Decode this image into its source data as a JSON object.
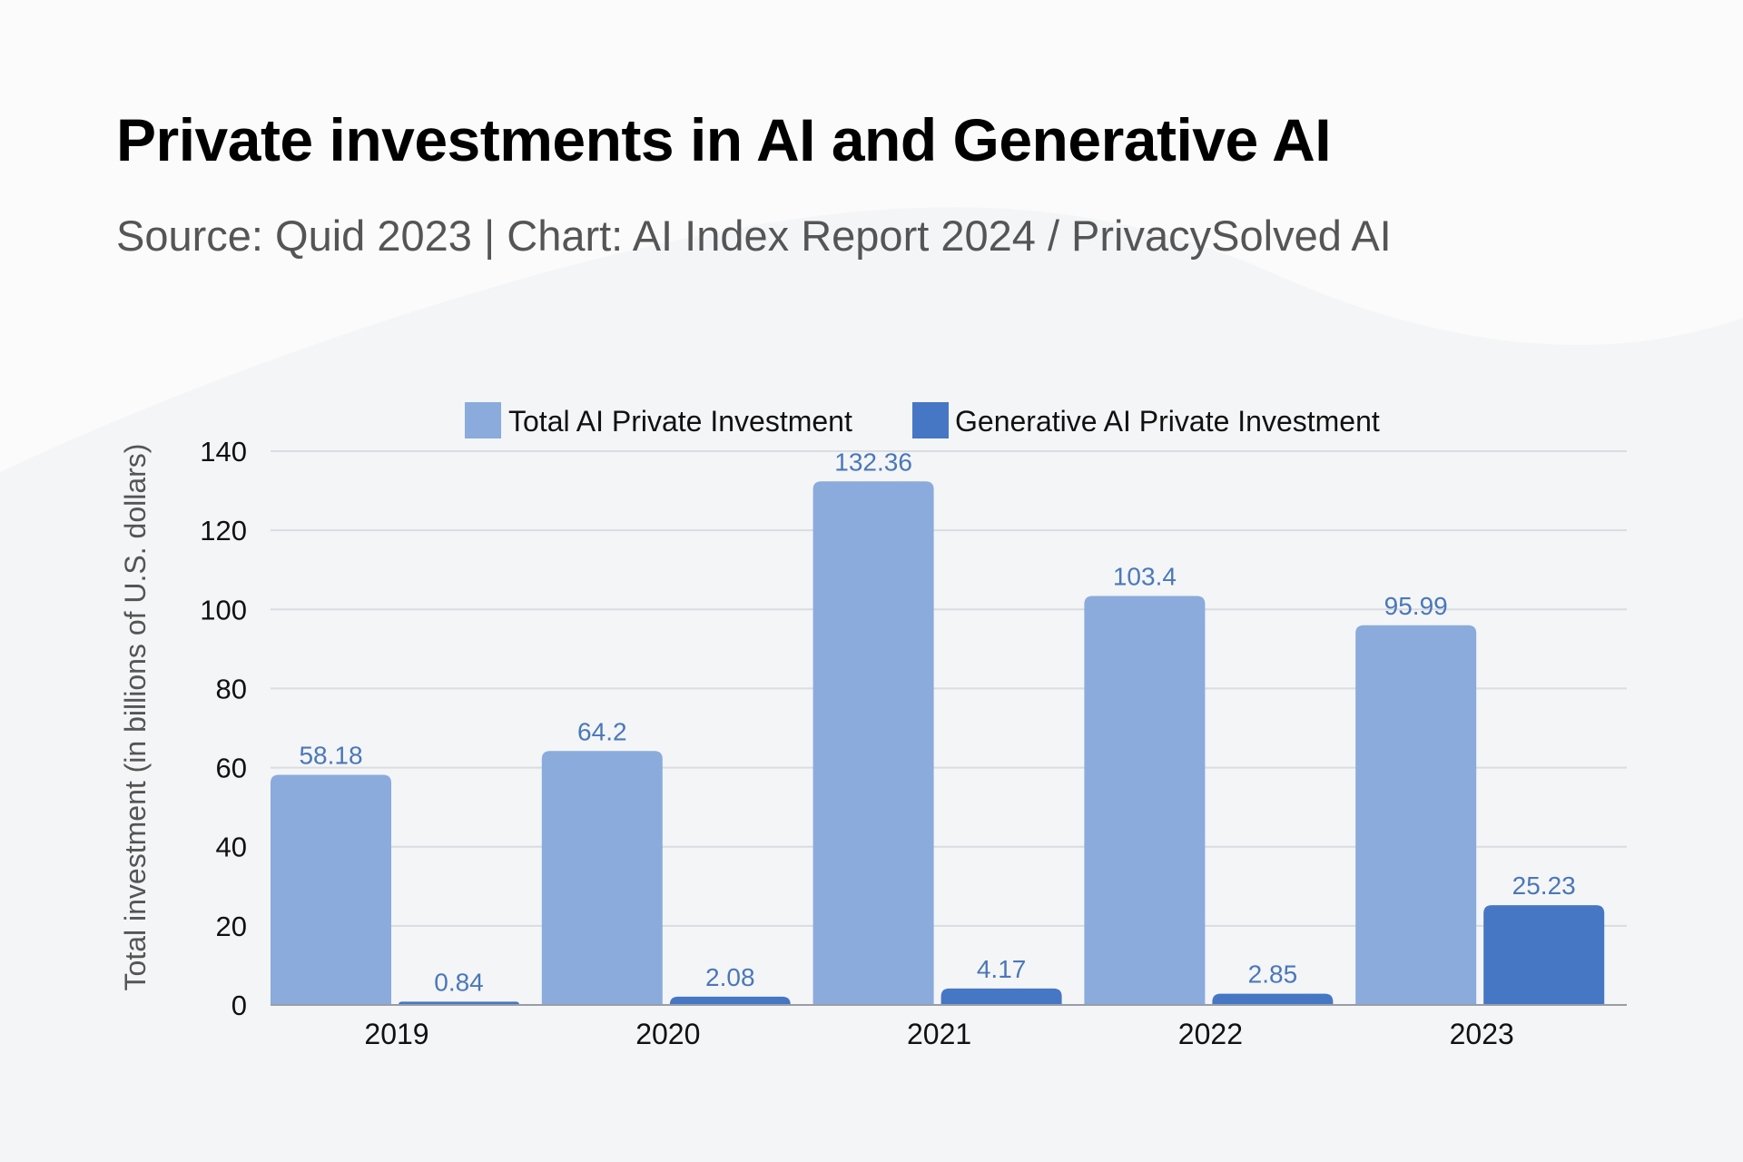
{
  "header": {
    "title": "Private investments in AI and Generative AI",
    "subtitle": "Source: Quid 2023 | Chart: AI Index Report 2024 / PrivacySolved AI"
  },
  "colors": {
    "total": "#8aabdc",
    "generative": "#4677c4",
    "value_label": "#4a78b8",
    "gridline": "#d9dce1",
    "baseline": "#9a9ea4"
  },
  "chart_data": {
    "type": "bar",
    "title": "Private investments in AI and Generative AI",
    "subtitle": "Source: Quid 2023 | Chart: AI Index Report 2024 / PrivacySolved AI",
    "xlabel": "",
    "ylabel": "Total investment (in billions of U.S. dollars)",
    "categories": [
      "2019",
      "2020",
      "2021",
      "2022",
      "2023"
    ],
    "series": [
      {
        "name": "Total AI Private Investment",
        "values": [
          58.18,
          64.2,
          132.36,
          103.4,
          95.99
        ],
        "labels": [
          "58.18",
          "64.2",
          "132.36",
          "103.4",
          "95.99"
        ]
      },
      {
        "name": "Generative AI Private Investment",
        "values": [
          0.84,
          2.08,
          4.17,
          2.85,
          25.23
        ],
        "labels": [
          "0.84",
          "2.08",
          "4.17",
          "2.85",
          "25.23"
        ]
      }
    ],
    "ylim": [
      0,
      140
    ],
    "yticks": [
      0,
      20,
      40,
      60,
      80,
      100,
      120,
      140
    ],
    "grid": true,
    "legend": "top-center"
  }
}
